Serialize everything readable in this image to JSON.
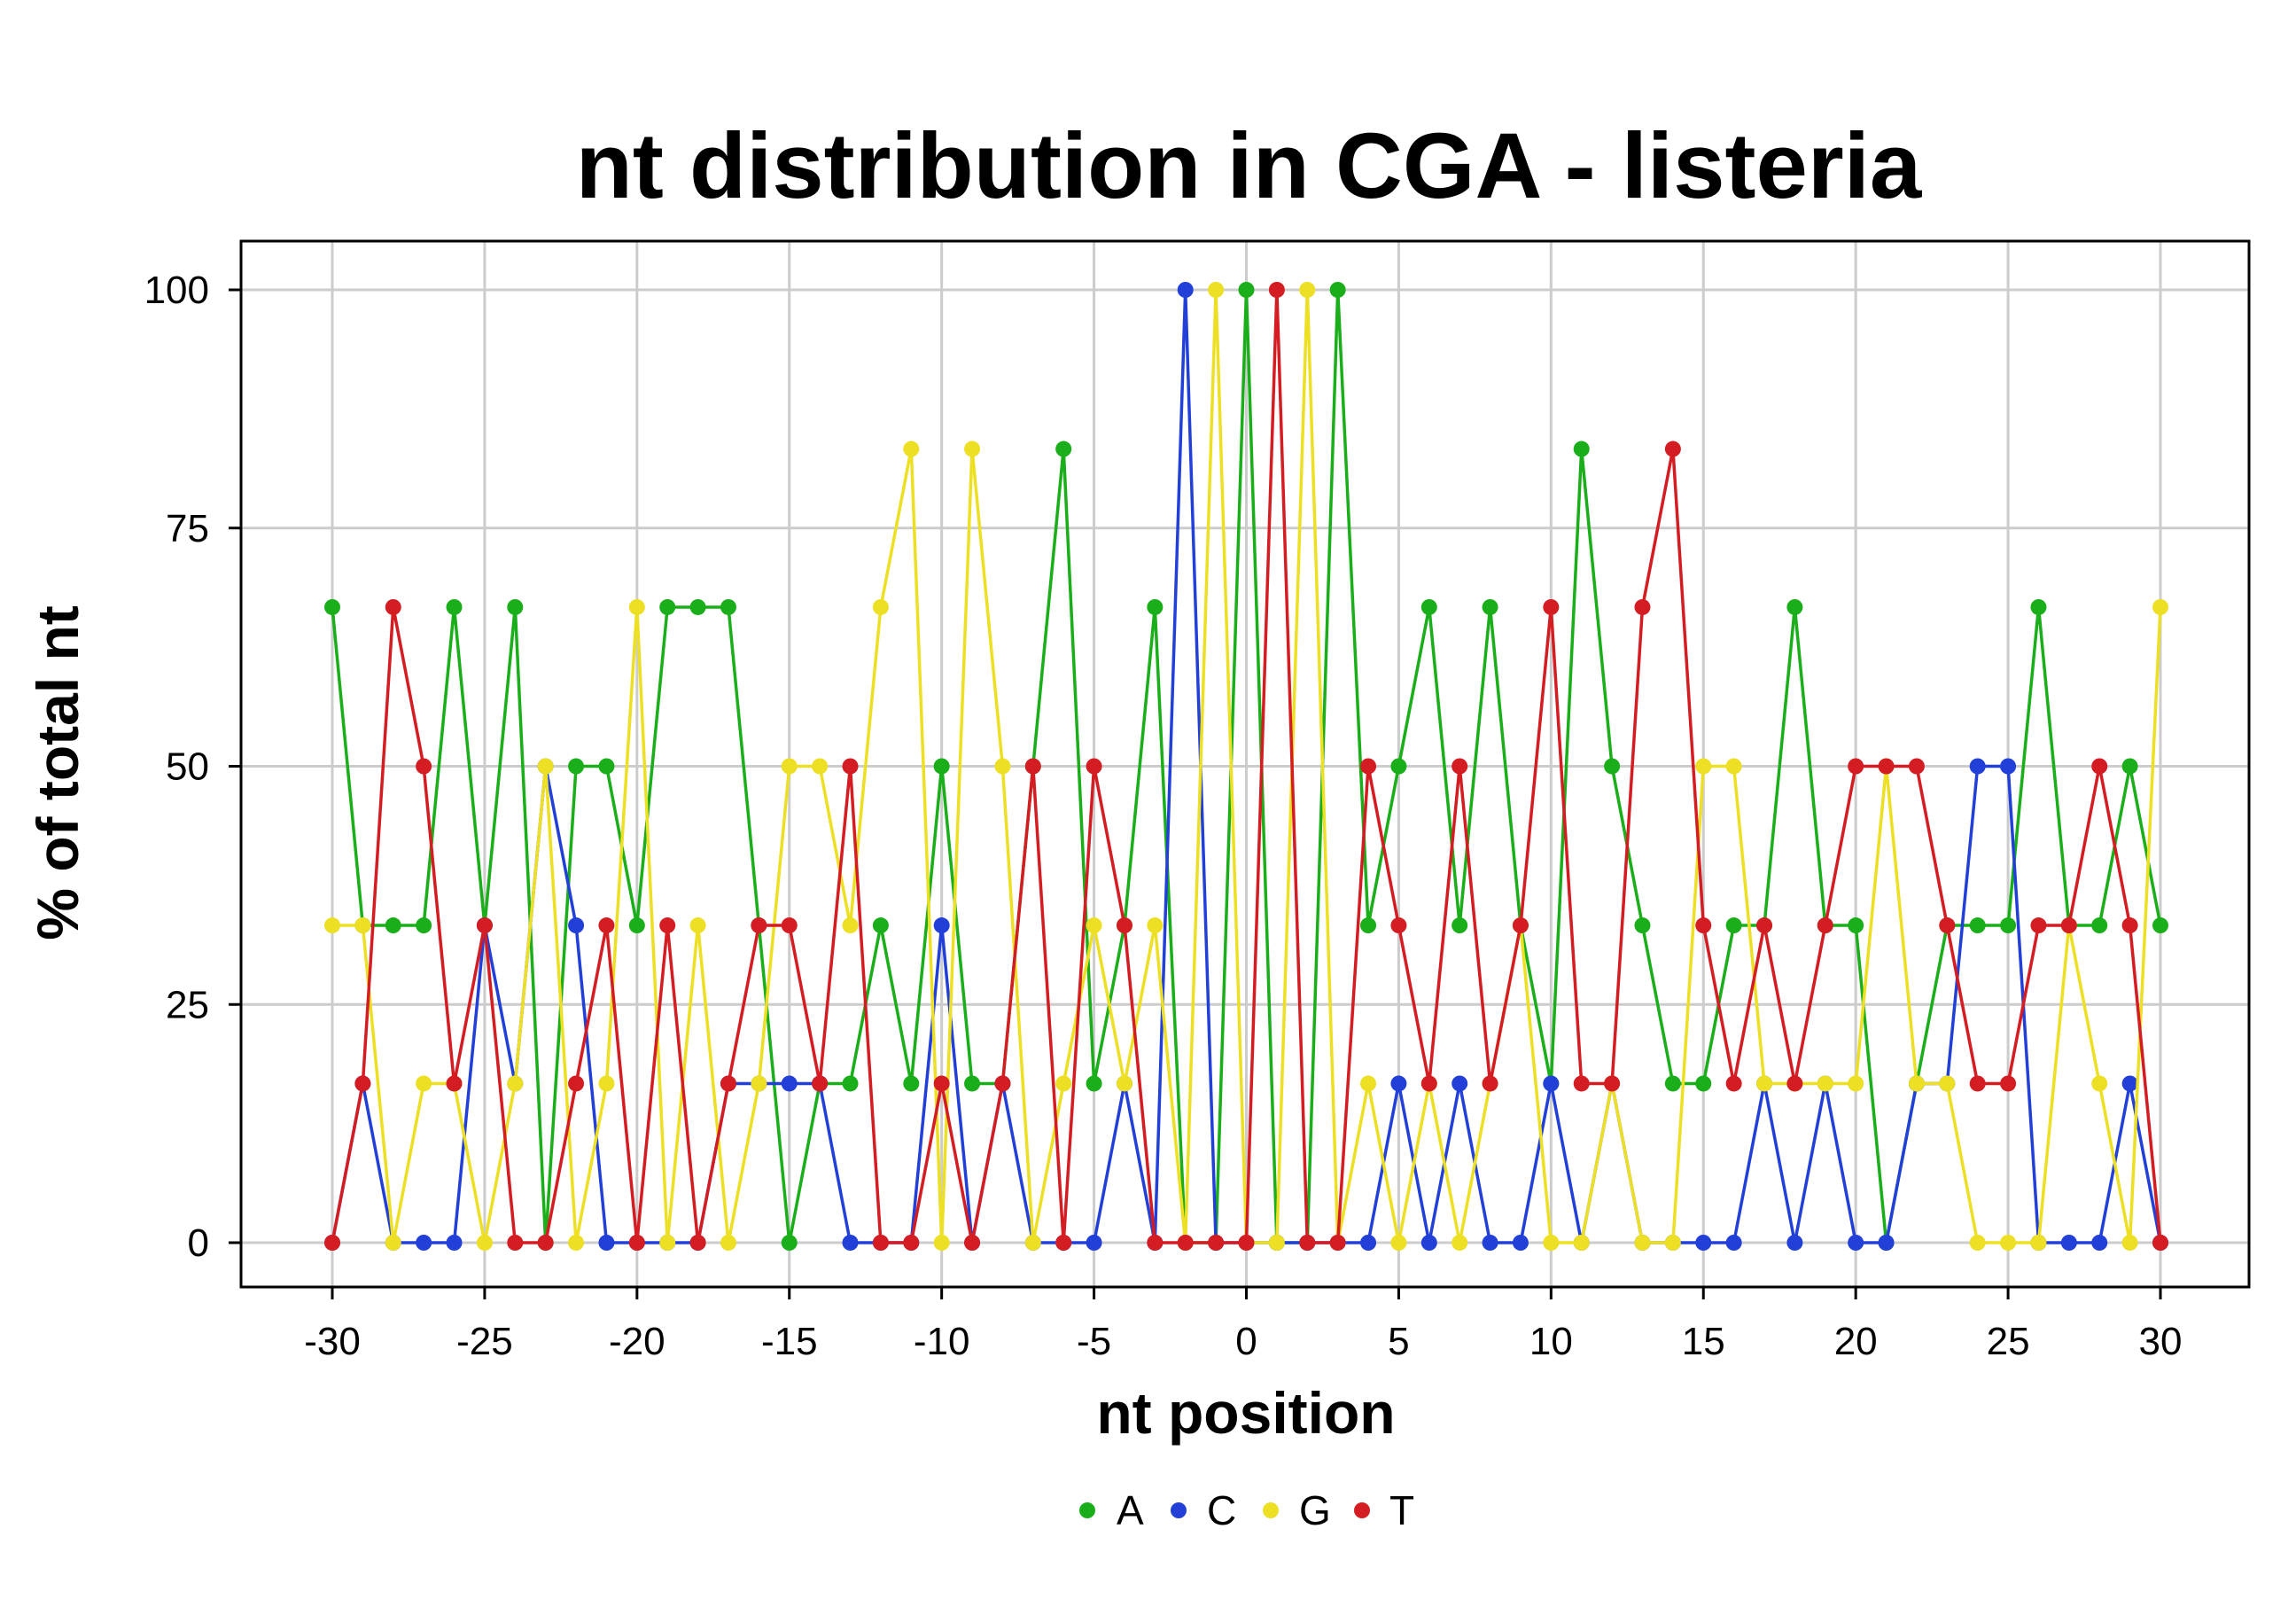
{
  "chart_data": {
    "type": "line",
    "title": "nt distribution in CGA - listeria",
    "xlabel": "nt position",
    "ylabel": "% of total nt",
    "xlim": [
      -30,
      30
    ],
    "ylim": [
      0,
      100
    ],
    "x_ticks": [
      -30,
      -25,
      -20,
      -15,
      -10,
      -5,
      0,
      5,
      10,
      15,
      20,
      25,
      30
    ],
    "x_tick_labels": [
      "-30",
      "-25",
      "-20",
      "-15",
      "-10",
      "-5",
      "0",
      "5",
      "10",
      "15",
      "20",
      "25",
      "30"
    ],
    "y_ticks": [
      0,
      25,
      50,
      75,
      100
    ],
    "y_tick_labels": [
      "0",
      "25",
      "50",
      "75",
      "100"
    ],
    "grid": true,
    "legend_position": "bottom",
    "x": [
      -30,
      -29,
      -28,
      -27,
      -26,
      -25,
      -24,
      -23,
      -22,
      -21,
      -20,
      -19,
      -18,
      -17,
      -16,
      -15,
      -14,
      -13,
      -12,
      -11,
      -10,
      -9,
      -8,
      -7,
      -6,
      -5,
      -4,
      -3,
      -2,
      -1,
      0,
      1,
      2,
      3,
      4,
      5,
      6,
      7,
      8,
      9,
      10,
      11,
      12,
      13,
      14,
      15,
      16,
      17,
      18,
      19,
      20,
      21,
      22,
      23,
      24,
      25,
      26,
      27,
      28,
      29,
      30
    ],
    "series": [
      {
        "name": "A",
        "color": "#1aaf1a",
        "values": [
          66.7,
          33.3,
          33.3,
          33.3,
          66.7,
          33.3,
          66.7,
          0,
          50,
          50,
          33.3,
          66.7,
          66.7,
          66.7,
          33.3,
          0,
          16.7,
          16.7,
          33.3,
          16.7,
          50,
          16.7,
          16.7,
          50,
          83.3,
          16.7,
          33.3,
          66.7,
          0,
          0,
          100,
          0,
          0,
          100,
          33.3,
          50,
          66.7,
          33.3,
          66.7,
          33.3,
          16.7,
          83.3,
          50,
          33.3,
          16.7,
          16.7,
          33.3,
          33.3,
          66.7,
          33.3,
          33.3,
          0,
          16.7,
          33.3,
          33.3,
          33.3,
          66.7,
          33.3,
          33.3,
          50,
          33.3
        ]
      },
      {
        "name": "C",
        "color": "#2240d8",
        "values": [
          0,
          16.7,
          0,
          0,
          0,
          33.3,
          16.7,
          50,
          33.3,
          0,
          0,
          0,
          0,
          16.7,
          16.7,
          16.7,
          16.7,
          0,
          0,
          0,
          33.3,
          0,
          16.7,
          0,
          0,
          0,
          16.7,
          0,
          100,
          0,
          0,
          0,
          0,
          0,
          0,
          16.7,
          0,
          16.7,
          0,
          0,
          16.7,
          0,
          16.7,
          0,
          0,
          0,
          0,
          16.7,
          0,
          16.7,
          0,
          0,
          16.7,
          16.7,
          50,
          50,
          0,
          0,
          0,
          16.7,
          0
        ]
      },
      {
        "name": "G",
        "color": "#ede024",
        "values": [
          33.3,
          33.3,
          0,
          16.7,
          16.7,
          0,
          16.7,
          50,
          0,
          16.7,
          66.7,
          0,
          33.3,
          0,
          16.7,
          50,
          50,
          33.3,
          66.7,
          83.3,
          0,
          83.3,
          50,
          0,
          16.7,
          33.3,
          16.7,
          33.3,
          0,
          100,
          0,
          0,
          100,
          0,
          16.7,
          0,
          16.7,
          0,
          16.7,
          33.3,
          0,
          0,
          16.7,
          0,
          0,
          50,
          50,
          16.7,
          16.7,
          16.7,
          16.7,
          50,
          16.7,
          16.7,
          0,
          0,
          0,
          33.3,
          16.7,
          0,
          66.7
        ]
      },
      {
        "name": "T",
        "color": "#d41c23",
        "values": [
          0,
          16.7,
          66.7,
          50,
          16.7,
          33.3,
          0,
          0,
          16.7,
          33.3,
          0,
          33.3,
          0,
          16.7,
          33.3,
          33.3,
          16.7,
          50,
          0,
          0,
          16.7,
          0,
          16.7,
          50,
          0,
          50,
          33.3,
          0,
          0,
          0,
          0,
          100,
          0,
          0,
          50,
          33.3,
          16.7,
          50,
          16.7,
          33.3,
          66.7,
          16.7,
          16.7,
          66.7,
          83.3,
          33.3,
          16.7,
          33.3,
          16.7,
          33.3,
          50,
          50,
          50,
          33.3,
          16.7,
          16.7,
          33.3,
          33.3,
          50,
          33.3,
          0
        ]
      }
    ]
  }
}
